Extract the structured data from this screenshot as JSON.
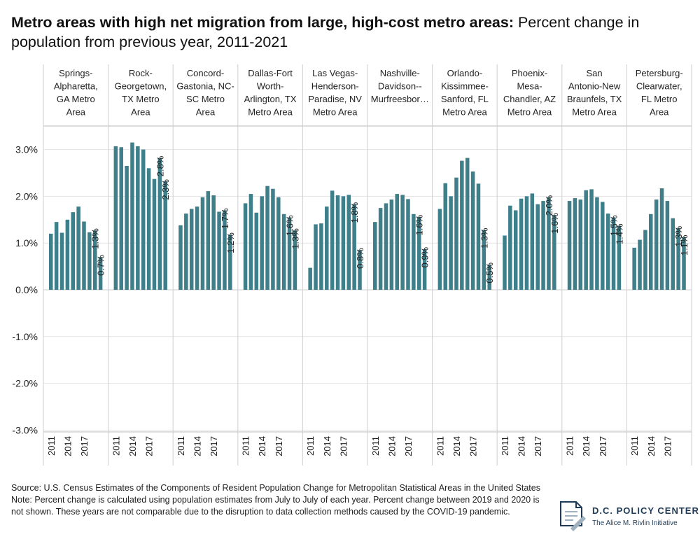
{
  "title": {
    "bold": "Metro areas with high net migration from large, high-cost metro areas:",
    "rest": " Percent change in population from previous year, 2011-2021"
  },
  "chart_data": {
    "type": "bar",
    "bar_color": "#3f7f8a",
    "grid": true,
    "y_ticks": [
      "3.0%",
      "2.0%",
      "1.0%",
      "0.0%",
      "-1.0%",
      "-2.0%",
      "-3.0%"
    ],
    "ylim": [
      -3.0,
      3.0
    ],
    "x_tick_labels": [
      "2011",
      "2014",
      "2017"
    ],
    "years": [
      2011,
      2012,
      2013,
      2014,
      2015,
      2016,
      2017,
      2018,
      2019,
      2020,
      2021
    ],
    "panels": [
      {
        "header": [
          "Springs-",
          "Alpharetta,",
          "GA Metro",
          "Area"
        ],
        "values": [
          1.2,
          1.45,
          1.22,
          1.5,
          1.66,
          1.78,
          1.46,
          1.23,
          1.27,
          0.7
        ],
        "labels": [
          {
            "text": "1.3%",
            "bar": 8
          },
          {
            "text": "0.7%",
            "bar": 9
          }
        ]
      },
      {
        "header": [
          "Rock-",
          "Georgetown,",
          "TX Metro",
          "Area"
        ],
        "values": [
          3.07,
          3.05,
          2.65,
          3.15,
          3.07,
          3.0,
          2.6,
          2.37,
          2.82,
          2.32
        ],
        "labels": [
          {
            "text": "2.8%",
            "bar": 8
          },
          {
            "text": "2.3%",
            "bar": 9
          }
        ]
      },
      {
        "header": [
          "Concord-",
          "Gastonia, NC-",
          "SC Metro",
          "Area"
        ],
        "values": [
          1.38,
          1.63,
          1.73,
          1.78,
          1.98,
          2.11,
          2.02,
          1.67,
          1.7,
          1.18
        ],
        "labels": [
          {
            "text": "1.7%",
            "bar": 8
          },
          {
            "text": "1.2%",
            "bar": 9
          }
        ]
      },
      {
        "header": [
          "Dallas-Fort",
          "Worth-",
          "Arlington, TX",
          "Metro Area"
        ],
        "values": [
          1.85,
          2.05,
          1.65,
          2.0,
          2.22,
          2.16,
          1.98,
          1.62,
          1.55,
          1.27
        ],
        "labels": [
          {
            "text": "1.6%",
            "bar": 8
          },
          {
            "text": "1.3%",
            "bar": 9
          }
        ]
      },
      {
        "header": [
          "Las Vegas-",
          "Henderson-",
          "Paradise, NV",
          "Metro Area"
        ],
        "values": [
          0.47,
          1.4,
          1.42,
          1.78,
          2.12,
          2.02,
          2.0,
          2.03,
          1.83,
          0.85
        ],
        "labels": [
          {
            "text": "1.8%",
            "bar": 8
          },
          {
            "text": "0.8%",
            "bar": 9
          }
        ]
      },
      {
        "header": [
          "Nashville-",
          "Davidson--",
          "Murfreesbor…"
        ],
        "values": [
          1.45,
          1.75,
          1.85,
          1.93,
          2.05,
          2.03,
          1.94,
          1.62,
          1.56,
          0.87
        ],
        "labels": [
          {
            "text": "1.6%",
            "bar": 8
          },
          {
            "text": "0.9%",
            "bar": 9
          }
        ]
      },
      {
        "header": [
          "Orlando-",
          "Kissimmee-",
          "Sanford, FL",
          "Metro Area"
        ],
        "values": [
          1.73,
          2.28,
          2.0,
          2.4,
          2.76,
          2.82,
          2.53,
          2.27,
          1.28,
          0.54
        ],
        "labels": [
          {
            "text": "1.3%",
            "bar": 8
          },
          {
            "text": "0.5%",
            "bar": 9
          }
        ]
      },
      {
        "header": [
          "Phoenix-",
          "Mesa-",
          "Chandler, AZ",
          "Metro Area"
        ],
        "values": [
          1.16,
          1.8,
          1.7,
          1.95,
          2.0,
          2.06,
          1.83,
          1.9,
          1.98,
          1.6
        ],
        "labels": [
          {
            "text": "2.0%",
            "bar": 8
          },
          {
            "text": "1.6%",
            "bar": 9
          }
        ]
      },
      {
        "header": [
          "San",
          "Antonio-New",
          "Braunfels, TX",
          "Metro Area"
        ],
        "values": [
          1.9,
          1.96,
          1.93,
          2.13,
          2.15,
          1.98,
          1.88,
          1.63,
          1.55,
          1.37
        ],
        "labels": [
          {
            "text": "1.5%",
            "bar": 8
          },
          {
            "text": "1.4%",
            "bar": 9
          }
        ]
      },
      {
        "header": [
          "Petersburg-",
          "Clearwater,",
          "FL Metro",
          "Area"
        ],
        "values": [
          0.9,
          1.07,
          1.28,
          1.62,
          1.93,
          2.17,
          1.9,
          1.53,
          1.32,
          1.13
        ],
        "labels": [
          {
            "text": "1.3%",
            "bar": 8
          },
          {
            "text": "1.1%",
            "bar": 9
          }
        ]
      }
    ]
  },
  "footer": {
    "source": "Source: U.S. Census Estimates of the Components of Resident Population Change for Metropolitan Statistical Areas in the United States",
    "note": "Note: Percent change is calculated using population estimates from July to July of each year. Percent change between 2019 and 2020 is not shown. These years are not comparable due to the disruption to data collection methods caused by the COVID-19 pandemic."
  },
  "logo": {
    "name": "D.C. POLICY CENTER",
    "sub": "The Alice M. Rivlin Initiative"
  }
}
